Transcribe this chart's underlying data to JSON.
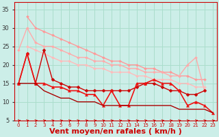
{
  "title": "",
  "xlabel": "Vent moyen/en rafales ( km/h )",
  "ylabel": "",
  "background_color": "#cceee8",
  "grid_color": "#aaddcc",
  "x": [
    0,
    1,
    2,
    3,
    4,
    5,
    6,
    7,
    8,
    9,
    10,
    11,
    12,
    13,
    14,
    15,
    16,
    17,
    18,
    19,
    20,
    21,
    22,
    23
  ],
  "ylim": [
    5,
    37
  ],
  "xlim": [
    -0.5,
    23.5
  ],
  "series": [
    {
      "y": [
        null,
        33,
        30,
        29,
        28,
        27,
        26,
        25,
        24,
        23,
        22,
        21,
        21,
        20,
        20,
        19,
        19,
        18,
        18,
        17,
        17,
        16,
        16,
        null
      ],
      "color": "#ff9999",
      "marker": "D",
      "markersize": 2.0,
      "linewidth": 1.0,
      "linestyle": "-"
    },
    {
      "y": [
        24,
        30,
        26,
        25,
        25,
        24,
        23,
        22,
        22,
        21,
        21,
        20,
        20,
        19,
        19,
        18,
        18,
        18,
        17,
        17,
        20,
        22,
        13,
        null
      ],
      "color": "#ffaaaa",
      "marker": "D",
      "markersize": 2.0,
      "linewidth": 1.0,
      "linestyle": "-"
    },
    {
      "y": [
        null,
        25,
        24,
        23,
        22,
        21,
        21,
        20,
        20,
        19,
        19,
        18,
        18,
        18,
        17,
        17,
        16,
        16,
        16,
        15,
        15,
        14,
        14,
        null
      ],
      "color": "#ffbbbb",
      "marker": "D",
      "markersize": 2.0,
      "linewidth": 1.0,
      "linestyle": "-"
    },
    {
      "y": [
        15,
        23,
        15,
        24,
        16,
        15,
        14,
        14,
        13,
        13,
        13,
        13,
        13,
        13,
        14,
        15,
        15,
        14,
        13,
        13,
        12,
        12,
        13,
        null
      ],
      "color": "#cc0000",
      "marker": "D",
      "markersize": 2.5,
      "linewidth": 1.0,
      "linestyle": "-"
    },
    {
      "y": [
        15,
        23,
        15,
        15,
        14,
        14,
        13,
        13,
        12,
        12,
        9,
        13,
        9,
        9,
        15,
        15,
        16,
        15,
        15,
        13,
        9,
        10,
        9,
        7
      ],
      "color": "#ee1111",
      "marker": "^",
      "markersize": 3.0,
      "linewidth": 1.2,
      "linestyle": "-"
    },
    {
      "y": [
        15,
        15,
        15,
        13,
        12,
        11,
        11,
        10,
        10,
        10,
        9,
        9,
        9,
        9,
        9,
        9,
        9,
        9,
        9,
        8,
        8,
        8,
        8,
        7
      ],
      "color": "#aa0000",
      "marker": null,
      "markersize": 0,
      "linewidth": 1.0,
      "linestyle": "-"
    }
  ],
  "tick_labels": [
    "0",
    "1",
    "2",
    "3",
    "4",
    "5",
    "6",
    "7",
    "8",
    "9",
    "10",
    "11",
    "12",
    "13",
    "14",
    "15",
    "16",
    "17",
    "18",
    "19",
    "20",
    "21",
    "22",
    "23"
  ],
  "yticks": [
    5,
    10,
    15,
    20,
    25,
    30,
    35
  ],
  "axis_color": "#cc0000",
  "xlabel_fontsize": 8
}
